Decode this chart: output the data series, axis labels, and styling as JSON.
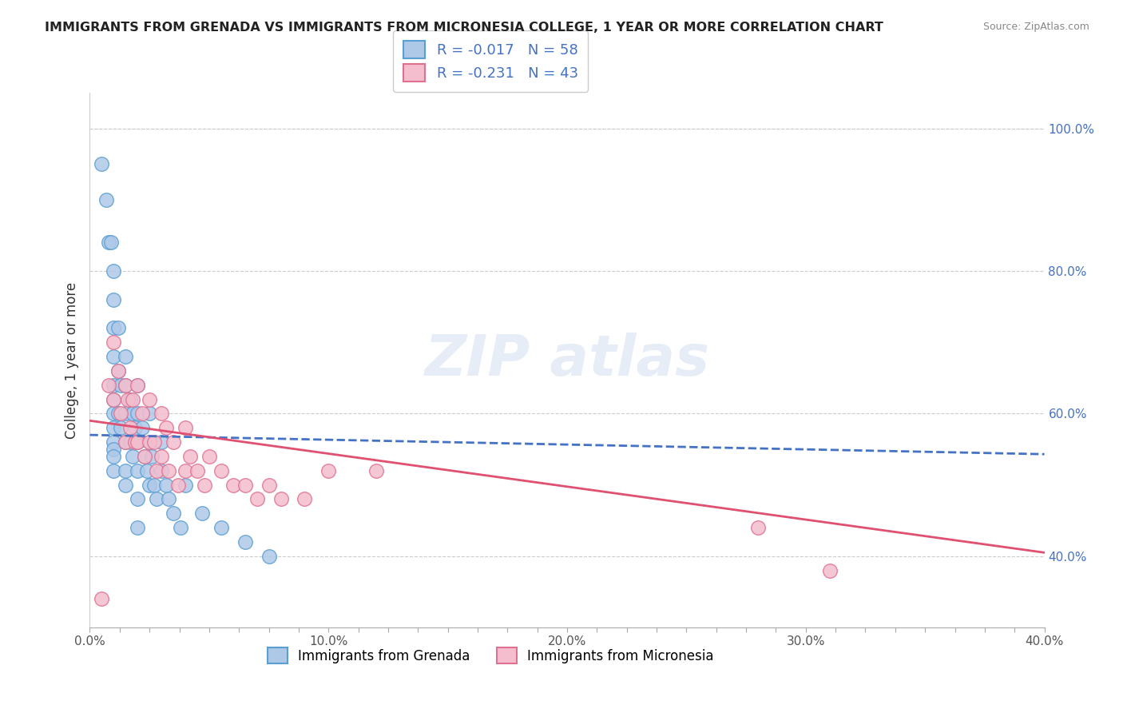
{
  "title": "IMMIGRANTS FROM GRENADA VS IMMIGRANTS FROM MICRONESIA COLLEGE, 1 YEAR OR MORE CORRELATION CHART",
  "source": "Source: ZipAtlas.com",
  "ylabel": "College, 1 year or more",
  "xlim": [
    0.0,
    0.4
  ],
  "ylim": [
    0.3,
    1.05
  ],
  "xtick_labels": [
    "0.0%",
    "",
    "",
    "",
    "",
    "",
    "",
    "",
    "10.0%",
    "",
    "",
    "",
    "",
    "",
    "",
    "",
    "20.0%",
    "",
    "",
    "",
    "",
    "",
    "",
    "",
    "30.0%",
    "",
    "",
    "",
    "",
    "",
    "",
    "",
    "40.0%"
  ],
  "xtick_vals": [
    0.0,
    0.0125,
    0.025,
    0.0375,
    0.05,
    0.0625,
    0.075,
    0.0875,
    0.1,
    0.1125,
    0.125,
    0.1375,
    0.15,
    0.1625,
    0.175,
    0.1875,
    0.2,
    0.2125,
    0.225,
    0.2375,
    0.25,
    0.2625,
    0.275,
    0.2875,
    0.3,
    0.3125,
    0.325,
    0.3375,
    0.35,
    0.3625,
    0.375,
    0.3875,
    0.4
  ],
  "ytick_labels_right": [
    "40.0%",
    "60.0%",
    "80.0%",
    "100.0%"
  ],
  "ytick_vals_right": [
    0.4,
    0.6,
    0.8,
    1.0
  ],
  "legend_entry1": "R = -0.017   N = 58",
  "legend_entry2": "R = -0.231   N = 43",
  "grenada_color": "#aec8e8",
  "grenada_edge": "#5a9fd4",
  "micronesia_color": "#f4bece",
  "micronesia_edge": "#e07090",
  "grenada_line_color": "#4472C4",
  "micronesia_line_color": "#E05070",
  "background_color": "#ffffff",
  "grenada_x": [
    0.005,
    0.007,
    0.008,
    0.009,
    0.01,
    0.01,
    0.01,
    0.01,
    0.01,
    0.01,
    0.01,
    0.01,
    0.01,
    0.01,
    0.01,
    0.01,
    0.012,
    0.012,
    0.012,
    0.013,
    0.013,
    0.015,
    0.015,
    0.015,
    0.015,
    0.015,
    0.015,
    0.017,
    0.017,
    0.018,
    0.018,
    0.019,
    0.02,
    0.02,
    0.02,
    0.02,
    0.02,
    0.02,
    0.022,
    0.023,
    0.024,
    0.025,
    0.025,
    0.025,
    0.026,
    0.027,
    0.028,
    0.03,
    0.03,
    0.032,
    0.033,
    0.035,
    0.038,
    0.04,
    0.047,
    0.055,
    0.065,
    0.075
  ],
  "grenada_y": [
    0.95,
    0.9,
    0.84,
    0.84,
    0.8,
    0.76,
    0.72,
    0.68,
    0.64,
    0.62,
    0.6,
    0.58,
    0.56,
    0.55,
    0.54,
    0.52,
    0.72,
    0.66,
    0.6,
    0.64,
    0.58,
    0.68,
    0.64,
    0.6,
    0.56,
    0.52,
    0.5,
    0.62,
    0.56,
    0.6,
    0.54,
    0.58,
    0.64,
    0.6,
    0.56,
    0.52,
    0.48,
    0.44,
    0.58,
    0.54,
    0.52,
    0.6,
    0.56,
    0.5,
    0.54,
    0.5,
    0.48,
    0.56,
    0.52,
    0.5,
    0.48,
    0.46,
    0.44,
    0.5,
    0.46,
    0.44,
    0.42,
    0.4
  ],
  "micronesia_x": [
    0.005,
    0.008,
    0.01,
    0.01,
    0.012,
    0.013,
    0.015,
    0.015,
    0.016,
    0.017,
    0.018,
    0.019,
    0.02,
    0.02,
    0.022,
    0.023,
    0.025,
    0.025,
    0.027,
    0.028,
    0.03,
    0.03,
    0.032,
    0.033,
    0.035,
    0.037,
    0.04,
    0.04,
    0.042,
    0.045,
    0.048,
    0.05,
    0.055,
    0.06,
    0.065,
    0.07,
    0.075,
    0.08,
    0.09,
    0.1,
    0.12,
    0.28,
    0.31
  ],
  "micronesia_y": [
    0.34,
    0.64,
    0.7,
    0.62,
    0.66,
    0.6,
    0.64,
    0.56,
    0.62,
    0.58,
    0.62,
    0.56,
    0.64,
    0.56,
    0.6,
    0.54,
    0.62,
    0.56,
    0.56,
    0.52,
    0.6,
    0.54,
    0.58,
    0.52,
    0.56,
    0.5,
    0.58,
    0.52,
    0.54,
    0.52,
    0.5,
    0.54,
    0.52,
    0.5,
    0.5,
    0.48,
    0.5,
    0.48,
    0.48,
    0.52,
    0.52,
    0.44,
    0.38
  ],
  "grenada_trend_x": [
    0.0,
    0.4
  ],
  "grenada_trend_y": [
    0.57,
    0.543
  ],
  "micronesia_trend_x": [
    0.0,
    0.4
  ],
  "micronesia_trend_y": [
    0.59,
    0.405
  ]
}
